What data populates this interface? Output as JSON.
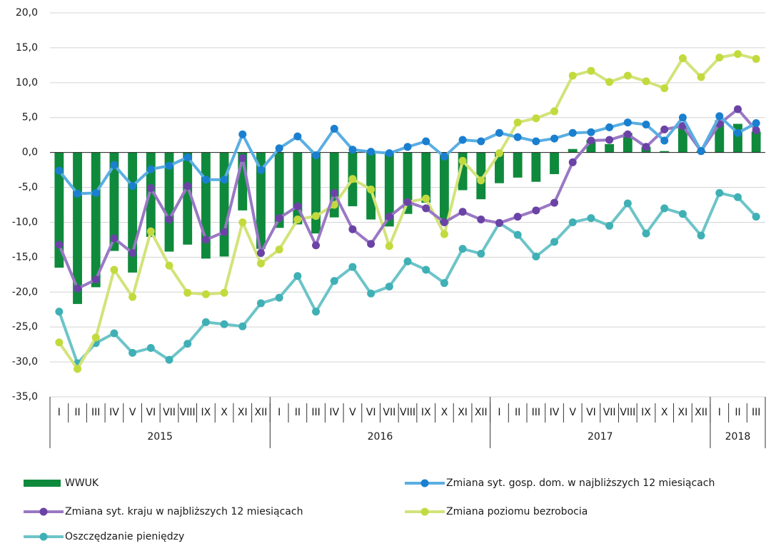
{
  "chart_data": {
    "type": "bar-line",
    "categories": [
      "I",
      "II",
      "III",
      "IV",
      "V",
      "VI",
      "VII",
      "VIII",
      "IX",
      "X",
      "XI",
      "XII",
      "I",
      "II",
      "III",
      "IV",
      "V",
      "VI",
      "VII",
      "VIII",
      "IX",
      "X",
      "XI",
      "XII",
      "I",
      "II",
      "III",
      "IV",
      "V",
      "VI",
      "VII",
      "VIII",
      "IX",
      "X",
      "XI",
      "XII",
      "I",
      "II",
      "III"
    ],
    "years": [
      "2015",
      "2016",
      "2017",
      "2018"
    ],
    "ylim": [
      -35,
      20
    ],
    "yticks": [
      {
        "value": -35,
        "label": "-35,0"
      },
      {
        "value": -30,
        "label": "-30,0"
      },
      {
        "value": -25,
        "label": "-25,0"
      },
      {
        "value": -20,
        "label": "-20,0"
      },
      {
        "value": -15,
        "label": "-15,0"
      },
      {
        "value": -10,
        "label": "-10,0"
      },
      {
        "value": -5,
        "label": "-5,0"
      },
      {
        "value": 0,
        "label": "0,0"
      },
      {
        "value": 5,
        "label": "5,0"
      },
      {
        "value": 10,
        "label": "10,0"
      },
      {
        "value": 15,
        "label": "15,0"
      },
      {
        "value": 20,
        "label": "20,0"
      }
    ],
    "grid": true,
    "legend": "bottom",
    "series": [
      {
        "name": "WWUK",
        "kind": "bar",
        "color": "#0f8a3c",
        "values": [
          -16.5,
          -21.7,
          -19.3,
          -14.1,
          -17.2,
          -12.1,
          -14.2,
          -13.2,
          -15.2,
          -14.9,
          -8.3,
          -13.8,
          -10.8,
          -10.3,
          -11.6,
          -9.3,
          -7.7,
          -9.6,
          -10.6,
          -8.8,
          -7.2,
          -10.2,
          -5.4,
          -6.7,
          -4.4,
          -3.6,
          -4.2,
          -3.1,
          0.5,
          1.8,
          1.2,
          2.8,
          0.8,
          0.2,
          3.5,
          0.2,
          4.6,
          4.1,
          3.0
        ]
      },
      {
        "name": "Zmiana syt. gosp. dom. w najbliższych 12 miesiącach",
        "kind": "line",
        "color": "#5aaee2",
        "marker_color": "#1a7fcf",
        "values": [
          -2.6,
          -5.9,
          -5.8,
          -1.8,
          -4.8,
          -2.4,
          -1.9,
          -0.7,
          -3.9,
          -3.9,
          2.6,
          -2.5,
          0.6,
          2.3,
          -0.4,
          3.4,
          0.4,
          0.1,
          -0.1,
          0.8,
          1.6,
          -0.6,
          1.8,
          1.6,
          2.8,
          2.2,
          1.6,
          2.0,
          2.8,
          2.9,
          3.6,
          4.3,
          4.0,
          1.7,
          5.0,
          0.2,
          5.2,
          2.8,
          4.2
        ]
      },
      {
        "name": "Zmiana syt. kraju w najbliższych 12 miesiącach",
        "kind": "line",
        "color": "#9a78c4",
        "marker_color": "#6b43a6",
        "values": [
          -13.2,
          -19.5,
          -18.2,
          -12.3,
          -14.4,
          -5.1,
          -9.6,
          -4.8,
          -12.5,
          -11.4,
          -0.8,
          -14.4,
          -9.4,
          -7.7,
          -13.3,
          -5.8,
          -11.0,
          -13.1,
          -9.2,
          -7.1,
          -8.0,
          -10.0,
          -8.5,
          -9.6,
          -10.1,
          -9.2,
          -8.3,
          -7.2,
          -1.4,
          1.7,
          1.8,
          2.6,
          0.8,
          3.3,
          3.8,
          0.2,
          4.1,
          6.2,
          3.2
        ]
      },
      {
        "name": "Zmiana poziomu bezrobocia",
        "kind": "line",
        "color": "#d3e37a",
        "marker_color": "#c3da3e",
        "values": [
          -27.2,
          -31.0,
          -26.5,
          -16.8,
          -20.7,
          -11.3,
          -16.2,
          -20.1,
          -20.3,
          -20.1,
          -10.0,
          -15.9,
          -13.9,
          -9.6,
          -9.1,
          -7.5,
          -3.8,
          -5.3,
          -13.4,
          -7.1,
          -6.6,
          -11.7,
          -1.2,
          -4.0,
          -0.1,
          4.3,
          4.9,
          5.9,
          11.0,
          11.7,
          10.1,
          11.0,
          10.2,
          9.2,
          13.5,
          10.8,
          13.6,
          14.1,
          13.4
        ]
      },
      {
        "name": "Oszczędzanie pieniędzy",
        "kind": "line",
        "color": "#6cc4c8",
        "marker_color": "#3fb0b5",
        "values": [
          -22.8,
          -30.2,
          -27.3,
          -25.9,
          -28.7,
          -28.0,
          -29.7,
          -27.4,
          -24.3,
          -24.6,
          -24.9,
          -21.6,
          -20.8,
          -17.7,
          -22.8,
          -18.4,
          -16.4,
          -20.2,
          -19.2,
          -15.6,
          -16.8,
          -18.7,
          -13.8,
          -14.5,
          -10.1,
          -11.8,
          -14.9,
          -12.8,
          -10.0,
          -9.4,
          -10.5,
          -7.3,
          -11.6,
          -8.0,
          -8.8,
          -11.9,
          -5.8,
          -6.4,
          -9.2
        ]
      }
    ]
  }
}
